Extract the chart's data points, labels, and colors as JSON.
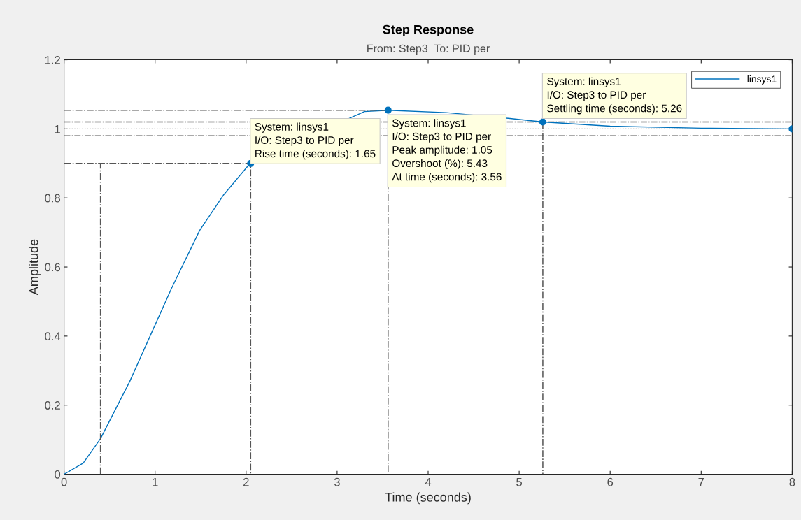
{
  "chart_data": {
    "type": "line",
    "title": "Step Response",
    "subtitle": "From: Step3  To: PID per",
    "xlabel": "Time (seconds)",
    "ylabel": "Amplitude",
    "xlim": [
      0,
      8
    ],
    "xticks": [
      0,
      1,
      2,
      3,
      4,
      5,
      6,
      7,
      8
    ],
    "ylim": [
      0,
      1.2
    ],
    "yticks": [
      0,
      0.2,
      0.4,
      0.6,
      0.8,
      1,
      1.2
    ],
    "grid": false,
    "legend": "top right",
    "series": [
      {
        "name": "linsys1",
        "color": "#0072bd",
        "x": [
          0,
          0.21,
          0.4,
          0.72,
          0.95,
          1.18,
          1.49,
          1.75,
          2.05,
          3.3,
          3.56,
          4.2,
          4.9,
          5.26,
          6,
          7,
          8
        ],
        "values": [
          0,
          0.032,
          0.103,
          0.268,
          0.403,
          0.538,
          0.706,
          0.808,
          0.902,
          1.05,
          1.054,
          1.047,
          1.03,
          1.02,
          1.008,
          1.002,
          1.0
        ]
      },
      {
        "type": "line",
        "color": "#555555",
        "line_style": "dashdot",
        "x": [
          0.4,
          0.4
        ],
        "values": [
          0,
          0.9
        ]
      },
      {
        "type": "line",
        "color": "#555555",
        "line_style": "dashdot",
        "x": [
          0,
          2.05,
          2.05
        ],
        "values": [
          0.9,
          0.9,
          0
        ]
      },
      {
        "type": "line",
        "color": "#555555",
        "line_style": "dashdot",
        "x": [
          0,
          3.56,
          3.56
        ],
        "values": [
          1.054,
          1.054,
          0
        ]
      },
      {
        "type": "line",
        "color": "#555555",
        "line_style": "dashdot",
        "x": [
          5.26,
          5.26
        ],
        "values": [
          1.02,
          0
        ]
      },
      {
        "type": "scatter",
        "color": "#0072bd",
        "marker": "circle",
        "x": [
          2.05,
          3.56,
          5.26,
          8
        ],
        "values": [
          0.9,
          1.054,
          1.02,
          1.0
        ]
      }
    ],
    "ref_lines": [
      {
        "axis": "y",
        "value": 1.02,
        "color": "#555555",
        "line_style": "dashdot"
      },
      {
        "axis": "y",
        "value": 0.98,
        "color": "#555555",
        "line_style": "dashdot"
      },
      {
        "axis": "y",
        "value": 1.0,
        "color": "#888888",
        "line_style": "dotted"
      }
    ],
    "annotations": [
      {
        "text": "System: linsys1\nI/O: Step3 to PID per\nRise time (seconds): 1.65",
        "x": 2.05,
        "y": 0.9
      },
      {
        "text": "System: linsys1\nI/O: Step3 to PID per\nPeak amplitude: 1.05\nOvershoot (%): 5.43\nAt time (seconds): 3.56",
        "x": 3.56,
        "y": 1.054
      },
      {
        "text": "System: linsys1\nI/O: Step3 to PID per\nSettling time (seconds): 5.26",
        "x": 5.26,
        "y": 1.02
      }
    ]
  }
}
